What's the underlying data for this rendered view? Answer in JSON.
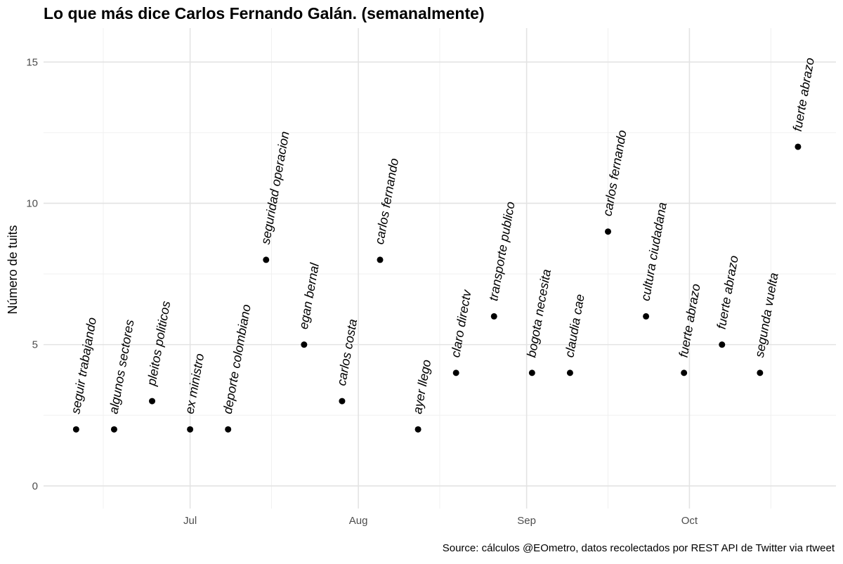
{
  "chart_data": {
    "type": "scatter",
    "title": "Lo que más dice Carlos Fernando Galán. (semanalmente)",
    "caption": "Source: cálculos @EOmetro, datos recolectados por REST API de Twitter via rtweet",
    "xlabel": "",
    "ylabel": "Número de tuits",
    "ylim": [
      -0.8,
      16.2
    ],
    "xlim": [
      "2019-06-04",
      "2019-10-28"
    ],
    "grid": true,
    "legend": "none",
    "y_ticks": [
      0,
      5,
      10,
      15
    ],
    "x_ticks": [
      {
        "date": "2019-07-01",
        "label": "Jul"
      },
      {
        "date": "2019-08-01",
        "label": "Aug"
      },
      {
        "date": "2019-09-01",
        "label": "Sep"
      },
      {
        "date": "2019-10-01",
        "label": "Oct"
      }
    ],
    "minor_x": [
      "2019-06-15",
      "2019-07-16",
      "2019-08-16",
      "2019-09-16",
      "2019-10-16"
    ],
    "points": [
      {
        "x": "2019-06-10",
        "y": 2,
        "label": "seguir trabajando"
      },
      {
        "x": "2019-06-17",
        "y": 2,
        "label": "algunos sectores"
      },
      {
        "x": "2019-06-24",
        "y": 3,
        "label": "pleitos politicos"
      },
      {
        "x": "2019-07-01",
        "y": 2,
        "label": "ex ministro"
      },
      {
        "x": "2019-07-08",
        "y": 2,
        "label": "deporte colombiano"
      },
      {
        "x": "2019-07-15",
        "y": 8,
        "label": "seguridad operacion"
      },
      {
        "x": "2019-07-22",
        "y": 5,
        "label": "egan bernal"
      },
      {
        "x": "2019-07-29",
        "y": 3,
        "label": "carlos costa"
      },
      {
        "x": "2019-08-05",
        "y": 8,
        "label": "carlos fernando"
      },
      {
        "x": "2019-08-12",
        "y": 2,
        "label": "ayer llego"
      },
      {
        "x": "2019-08-19",
        "y": 4,
        "label": "claro directv"
      },
      {
        "x": "2019-08-26",
        "y": 6,
        "label": "transporte publico"
      },
      {
        "x": "2019-09-02",
        "y": 4,
        "label": "bogota necesita"
      },
      {
        "x": "2019-09-09",
        "y": 4,
        "label": "claudia cae"
      },
      {
        "x": "2019-09-16",
        "y": 9,
        "label": "carlos fernando"
      },
      {
        "x": "2019-09-23",
        "y": 6,
        "label": "cultura ciudadana"
      },
      {
        "x": "2019-09-30",
        "y": 4,
        "label": "fuerte abrazo"
      },
      {
        "x": "2019-10-07",
        "y": 5,
        "label": "fuerte abrazo"
      },
      {
        "x": "2019-10-14",
        "y": 4,
        "label": "segunda vuelta"
      },
      {
        "x": "2019-10-21",
        "y": 12,
        "label": "fuerte abrazo"
      }
    ],
    "colors": {
      "point": "#000000",
      "grid_major": "#e3e3e3",
      "grid_minor": "#f0f0f0",
      "tick_text": "#4d4d4d"
    }
  }
}
